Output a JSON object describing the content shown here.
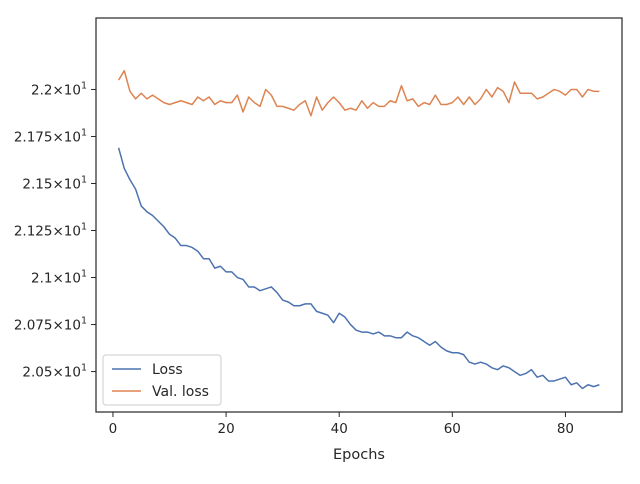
{
  "chart_data": {
    "type": "line",
    "title": "",
    "xlabel": "Epochs",
    "ylabel": "",
    "xlim": [
      -3,
      90
    ],
    "ylim": [
      20.285,
      22.38
    ],
    "grid": false,
    "legend_position": "lower-left",
    "x_ticks": [
      0,
      20,
      40,
      60,
      80
    ],
    "x_tick_labels": [
      "0",
      "20",
      "40",
      "60",
      "80"
    ],
    "y_ticks": [
      20.5,
      20.75,
      21.0,
      21.25,
      21.5,
      21.75,
      22.0
    ],
    "y_tick_labels": [
      {
        "mantissa": "2.05",
        "exp": "1"
      },
      {
        "mantissa": "2.075",
        "exp": "1"
      },
      {
        "mantissa": "2.1",
        "exp": "1"
      },
      {
        "mantissa": "2.125",
        "exp": "1"
      },
      {
        "mantissa": "2.15",
        "exp": "1"
      },
      {
        "mantissa": "2.175",
        "exp": "1"
      },
      {
        "mantissa": "2.2",
        "exp": "1"
      }
    ],
    "y_tick_base": "10",
    "x": [
      1,
      2,
      3,
      4,
      5,
      6,
      7,
      8,
      9,
      10,
      11,
      12,
      13,
      14,
      15,
      16,
      17,
      18,
      19,
      20,
      21,
      22,
      23,
      24,
      25,
      26,
      27,
      28,
      29,
      30,
      31,
      32,
      33,
      34,
      35,
      36,
      37,
      38,
      39,
      40,
      41,
      42,
      43,
      44,
      45,
      46,
      47,
      48,
      49,
      50,
      51,
      52,
      53,
      54,
      55,
      56,
      57,
      58,
      59,
      60,
      61,
      62,
      63,
      64,
      65,
      66,
      67,
      68,
      69,
      70,
      71,
      72,
      73,
      74,
      75,
      76,
      77,
      78,
      79,
      80,
      81,
      82,
      83,
      84,
      85,
      86
    ],
    "series": [
      {
        "name": "Loss",
        "color": "#4c72b0",
        "values": [
          21.69,
          21.58,
          21.52,
          21.47,
          21.38,
          21.35,
          21.33,
          21.3,
          21.27,
          21.23,
          21.21,
          21.17,
          21.17,
          21.16,
          21.14,
          21.1,
          21.1,
          21.05,
          21.06,
          21.03,
          21.03,
          21.0,
          20.99,
          20.95,
          20.95,
          20.93,
          20.94,
          20.95,
          20.92,
          20.88,
          20.87,
          20.85,
          20.85,
          20.86,
          20.86,
          20.82,
          20.81,
          20.8,
          20.76,
          20.81,
          20.79,
          20.75,
          20.72,
          20.71,
          20.71,
          20.7,
          20.71,
          20.69,
          20.69,
          20.68,
          20.68,
          20.71,
          20.69,
          20.68,
          20.66,
          20.64,
          20.66,
          20.63,
          20.61,
          20.6,
          20.6,
          20.59,
          20.55,
          20.54,
          20.55,
          20.54,
          20.52,
          20.51,
          20.53,
          20.52,
          20.5,
          20.48,
          20.49,
          20.51,
          20.47,
          20.48,
          20.45,
          20.45,
          20.46,
          20.47,
          20.43,
          20.44,
          20.41,
          20.43,
          20.42,
          20.43
        ]
      },
      {
        "name": "Val. loss",
        "color": "#dd8452",
        "values": [
          22.05,
          22.1,
          21.99,
          21.95,
          21.98,
          21.95,
          21.97,
          21.95,
          21.93,
          21.92,
          21.93,
          21.94,
          21.93,
          21.92,
          21.96,
          21.94,
          21.96,
          21.92,
          21.94,
          21.93,
          21.93,
          21.97,
          21.88,
          21.96,
          21.93,
          21.91,
          22.0,
          21.97,
          21.91,
          21.91,
          21.9,
          21.89,
          21.92,
          21.94,
          21.86,
          21.96,
          21.89,
          21.93,
          21.96,
          21.93,
          21.89,
          21.9,
          21.89,
          21.94,
          21.9,
          21.93,
          21.91,
          21.91,
          21.94,
          21.93,
          22.02,
          21.94,
          21.95,
          21.91,
          21.93,
          21.92,
          21.97,
          21.92,
          21.92,
          21.93,
          21.96,
          21.92,
          21.96,
          21.92,
          21.95,
          22.0,
          21.96,
          22.01,
          21.99,
          21.93,
          22.04,
          21.98,
          21.98,
          21.98,
          21.95,
          21.96,
          21.98,
          22.0,
          21.99,
          21.97,
          22.0,
          22.0,
          21.96,
          22.0,
          21.99,
          21.99
        ]
      }
    ]
  }
}
